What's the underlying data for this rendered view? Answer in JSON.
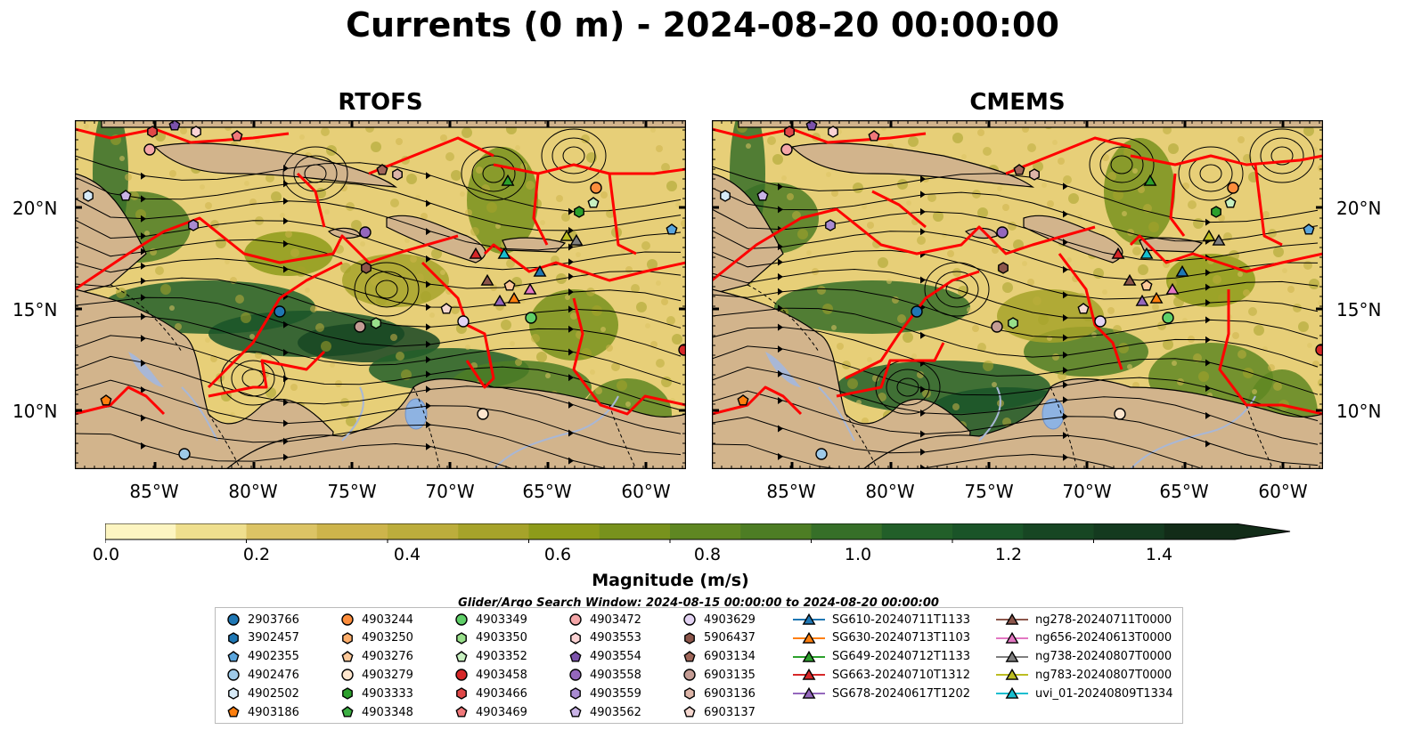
{
  "title": "Currents (0 m) - 2024-08-20 00:00:00",
  "panels": [
    {
      "title": "RTOFS"
    },
    {
      "title": "CMEMS"
    }
  ],
  "lat_ticks": [
    "20°N",
    "15°N",
    "10°N"
  ],
  "lon_ticks": [
    "85°W",
    "80°W",
    "75°W",
    "70°W",
    "65°W",
    "60°W"
  ],
  "colorbar": {
    "title": "Magnitude (m/s)",
    "tick_labels": [
      "0.0",
      "0.2",
      "0.4",
      "0.6",
      "0.8",
      "1.0",
      "1.2",
      "1.4"
    ],
    "range": [
      0.0,
      1.5
    ],
    "colors": [
      "#fdf5c1",
      "#efdf8e",
      "#dcc465",
      "#cdb44b",
      "#bcad3c",
      "#a6a32a",
      "#8d9b1a",
      "#78921d",
      "#5f8722",
      "#4d7d24",
      "#366f28",
      "#225f29",
      "#1a5428",
      "#174623",
      "#143a1f",
      "#122c18"
    ],
    "extend": "max"
  },
  "search_window": "Glider/Argo Search Window: 2024-08-15 00:00:00 to 2024-08-20 00:00:00",
  "legend_columns": [
    [
      {
        "label": "2903766",
        "marker": "circle",
        "color": "#1f77b4"
      },
      {
        "label": "3902457",
        "marker": "hexagon",
        "color": "#1f77b4"
      },
      {
        "label": "4902355",
        "marker": "pentagon",
        "color": "#5aa5dc"
      },
      {
        "label": "4902476",
        "marker": "circle",
        "color": "#9ecae9"
      },
      {
        "label": "4902502",
        "marker": "hexagon",
        "color": "#d7eaf7"
      },
      {
        "label": "4903186",
        "marker": "pentagon",
        "color": "#ff7f0e"
      }
    ],
    [
      {
        "label": "4903244",
        "marker": "circle",
        "color": "#fd8d3c"
      },
      {
        "label": "4903250",
        "marker": "hexagon",
        "color": "#fdae6b"
      },
      {
        "label": "4903276",
        "marker": "pentagon",
        "color": "#fdc99a"
      },
      {
        "label": "4903279",
        "marker": "circle",
        "color": "#fee6ce"
      },
      {
        "label": "4903333",
        "marker": "hexagon",
        "color": "#2ca02c"
      },
      {
        "label": "4903348",
        "marker": "pentagon",
        "color": "#3cb043"
      }
    ],
    [
      {
        "label": "4903349",
        "marker": "circle",
        "color": "#5fcf68"
      },
      {
        "label": "4903350",
        "marker": "hexagon",
        "color": "#98df8a"
      },
      {
        "label": "4903352",
        "marker": "pentagon",
        "color": "#c7f0c0"
      },
      {
        "label": "4903458",
        "marker": "circle",
        "color": "#d62728"
      },
      {
        "label": "4903466",
        "marker": "hexagon",
        "color": "#e04848"
      },
      {
        "label": "4903469",
        "marker": "pentagon",
        "color": "#f0787a"
      }
    ],
    [
      {
        "label": "4903472",
        "marker": "circle",
        "color": "#f4a6a8"
      },
      {
        "label": "4903553",
        "marker": "hexagon",
        "color": "#fbd3d4"
      },
      {
        "label": "4903554",
        "marker": "pentagon",
        "color": "#7b52ab"
      },
      {
        "label": "4903558",
        "marker": "circle",
        "color": "#9467bd"
      },
      {
        "label": "4903559",
        "marker": "hexagon",
        "color": "#a98bd2"
      },
      {
        "label": "4903562",
        "marker": "pentagon",
        "color": "#c9b3e6"
      }
    ],
    [
      {
        "label": "4903629",
        "marker": "circle",
        "color": "#e3d3f3"
      },
      {
        "label": "5906437",
        "marker": "hexagon",
        "color": "#8c564b"
      },
      {
        "label": "6903134",
        "marker": "pentagon",
        "color": "#a0675a"
      },
      {
        "label": "6903135",
        "marker": "circle",
        "color": "#c49c94"
      },
      {
        "label": "6903136",
        "marker": "hexagon",
        "color": "#ddb5a8"
      },
      {
        "label": "6903137",
        "marker": "pentagon",
        "color": "#f5d7cf"
      }
    ],
    [
      {
        "label": "SG610-20240711T1133",
        "marker": "triangle",
        "color": "#1f77b4"
      },
      {
        "label": "SG630-20240713T1103",
        "marker": "triangle",
        "color": "#ff7f0e"
      },
      {
        "label": "SG649-20240712T1133",
        "marker": "triangle",
        "color": "#2ca02c"
      },
      {
        "label": "SG663-20240710T1312",
        "marker": "triangle",
        "color": "#d62728"
      },
      {
        "label": "SG678-20240617T1202",
        "marker": "triangle",
        "color": "#9467bd"
      }
    ],
    [
      {
        "label": "ng278-20240711T0000",
        "marker": "triangle",
        "color": "#8c564b"
      },
      {
        "label": "ng656-20240613T0000",
        "marker": "triangle",
        "color": "#e377c2"
      },
      {
        "label": "ng738-20240807T0000",
        "marker": "triangle",
        "color": "#7f7f7f"
      },
      {
        "label": "ng783-20240807T0000",
        "marker": "triangle",
        "color": "#bcbd22"
      },
      {
        "label": "uvi_01-20240809T1334",
        "marker": "triangle",
        "color": "#17becf"
      }
    ]
  ],
  "map_colors": {
    "land": "#d2b48c",
    "lake": "#8eb3e2",
    "river": "#a8b7d6",
    "boundary": "#ff0000",
    "streamline": "#000000"
  }
}
